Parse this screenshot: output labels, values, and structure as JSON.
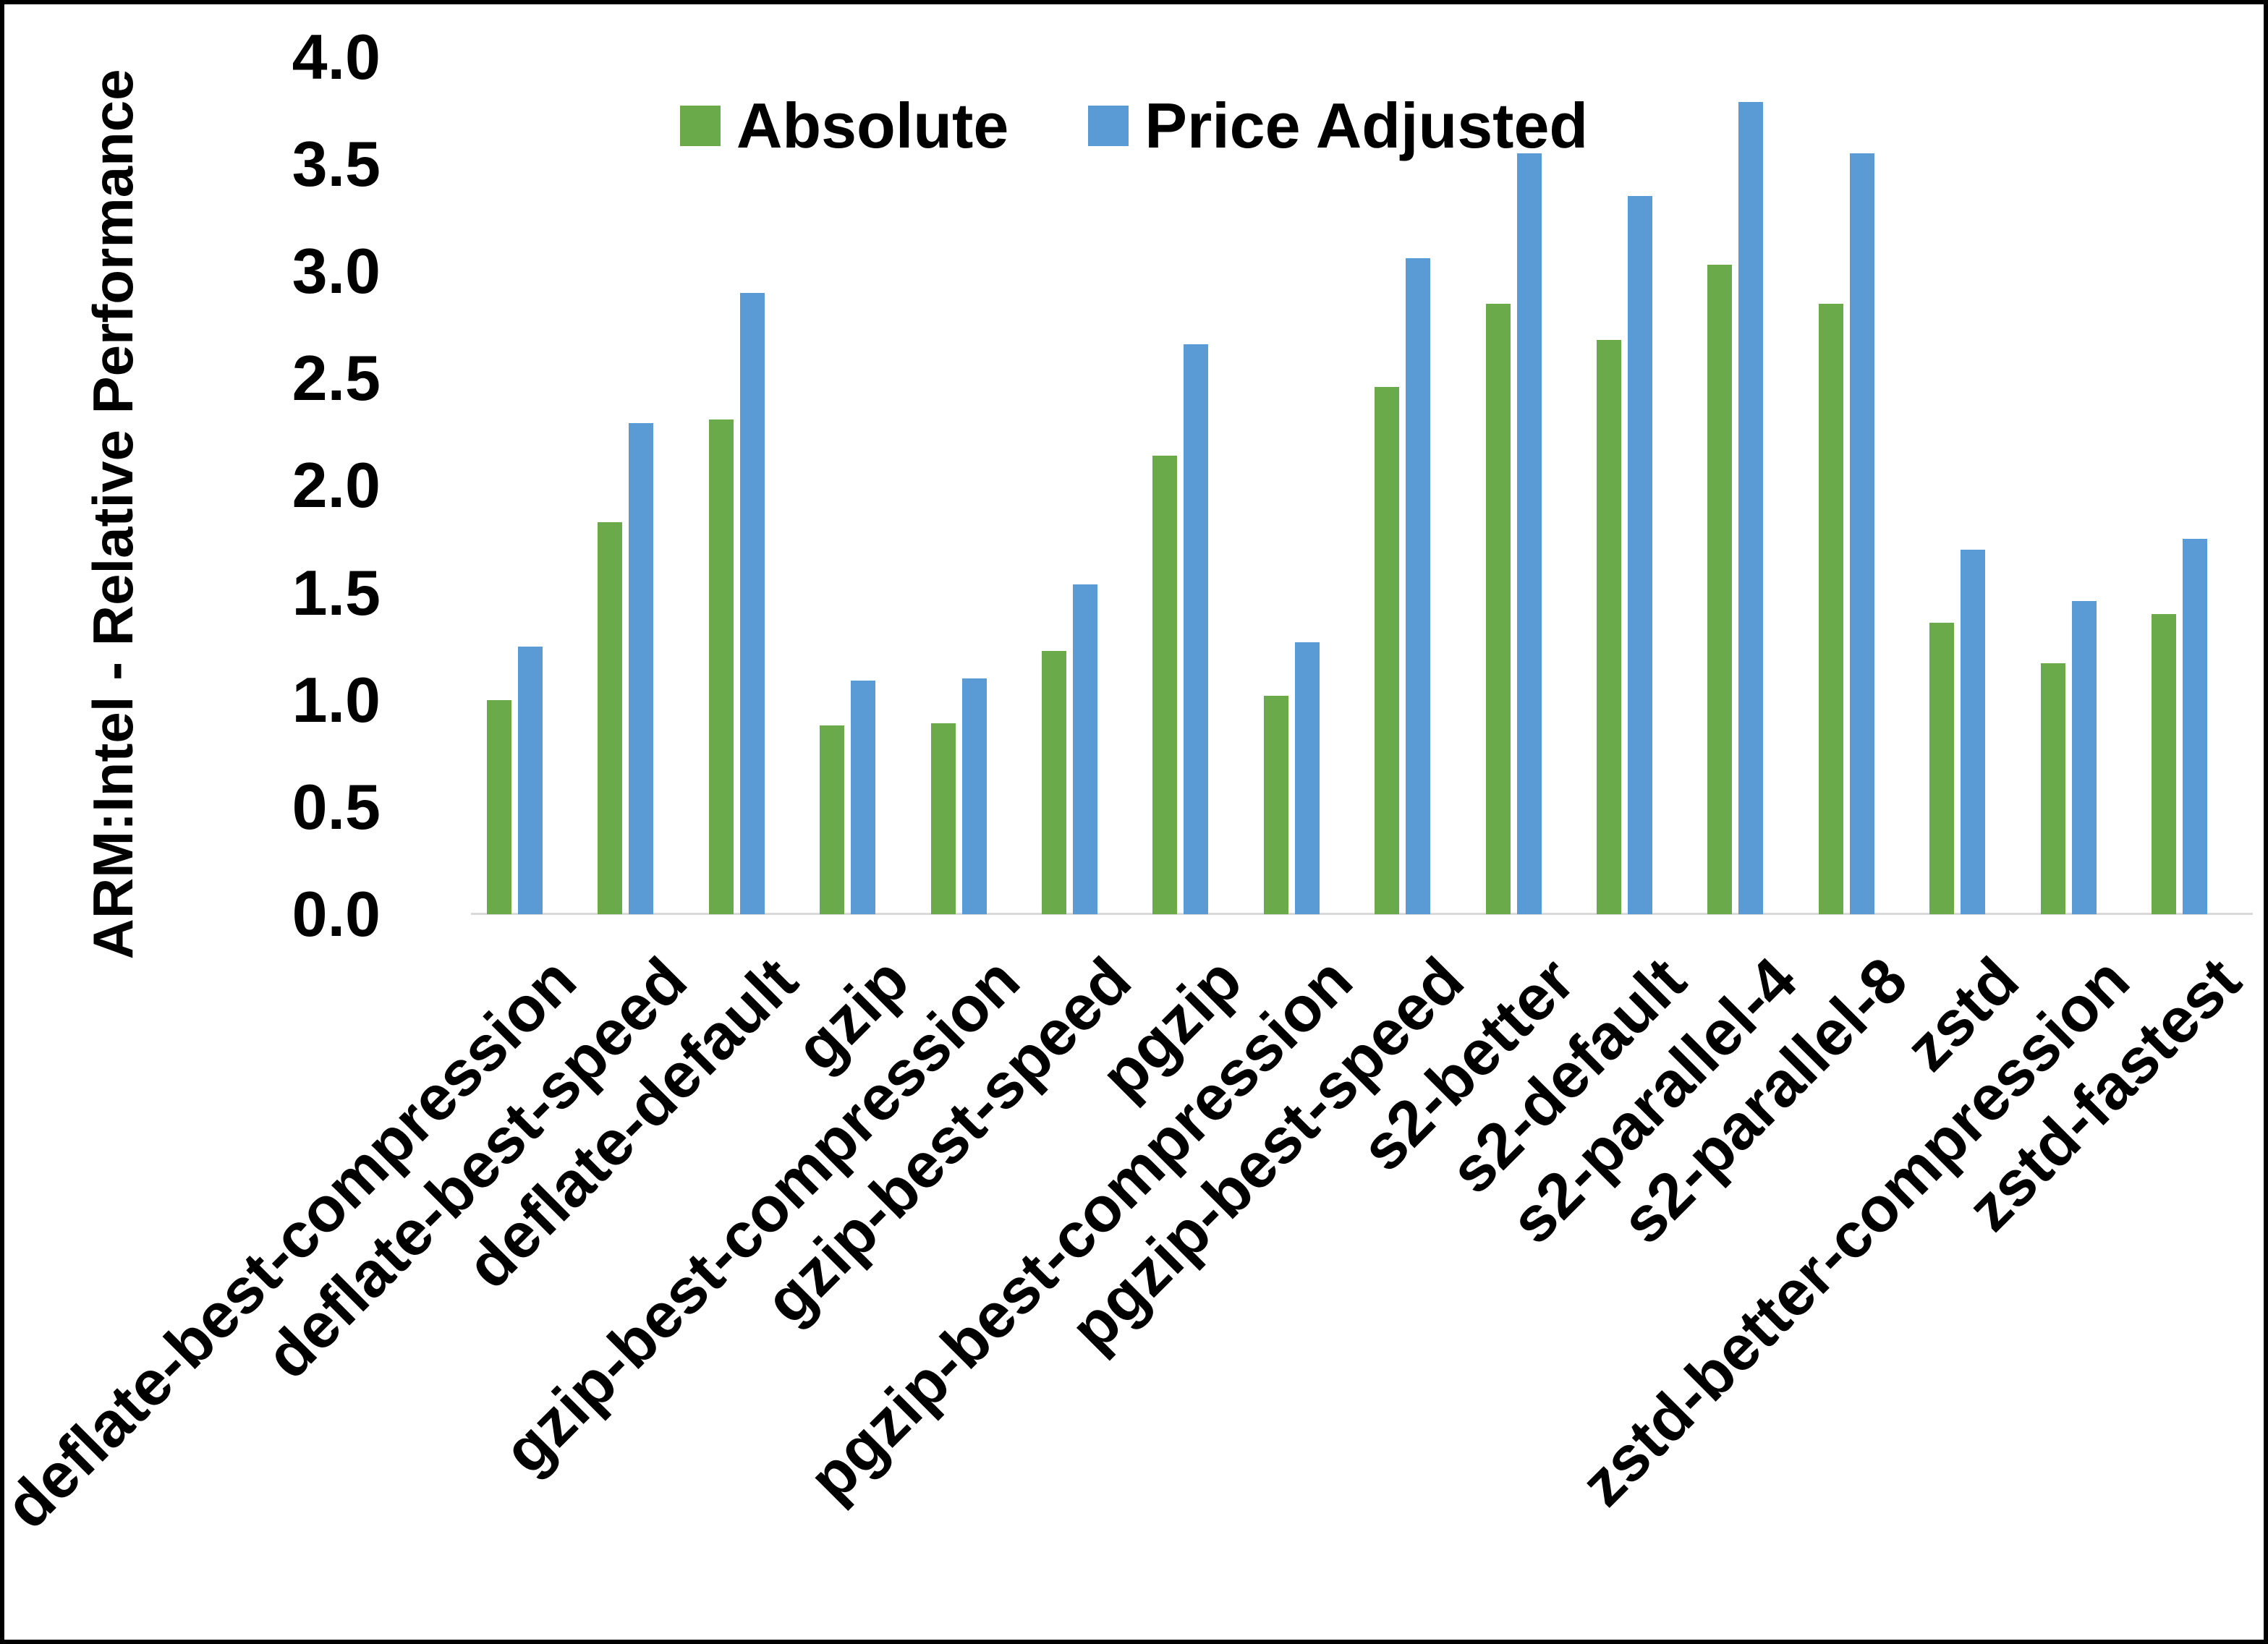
{
  "chart_data": {
    "type": "bar",
    "title": "",
    "xlabel": "",
    "ylabel": "ARM:Intel - Relative Performance",
    "ylim": [
      0.0,
      4.0
    ],
    "ytick_step": 0.5,
    "ytick_labels": [
      "0.0",
      "0.5",
      "1.0",
      "1.5",
      "2.0",
      "2.5",
      "3.0",
      "3.5",
      "4.0"
    ],
    "grid": false,
    "legend_position": "top-center",
    "categories": [
      "deflate-best-compression",
      "deflate-best-speed",
      "deflate-default",
      "gzip",
      "gzip-best-compression",
      "gzip-best-speed",
      "pgzip",
      "pgzip-best-compression",
      "pgzip-best-speed",
      "s2-better",
      "s2-default",
      "s2-parallel-4",
      "s2-parallel-8",
      "zstd",
      "zstd-better-compression",
      "zstd-fastest"
    ],
    "series": [
      {
        "name": "Absolute",
        "color": "#6aaa4b",
        "values": [
          1.0,
          1.83,
          2.31,
          0.88,
          0.89,
          1.23,
          2.14,
          1.02,
          2.46,
          2.85,
          2.68,
          3.03,
          2.85,
          1.36,
          1.17,
          1.4
        ]
      },
      {
        "name": "Price Adjusted",
        "color": "#5b9bd5",
        "values": [
          1.25,
          2.29,
          2.9,
          1.09,
          1.1,
          1.54,
          2.66,
          1.27,
          3.06,
          3.55,
          3.35,
          3.79,
          3.55,
          1.7,
          1.46,
          1.75
        ]
      }
    ]
  }
}
